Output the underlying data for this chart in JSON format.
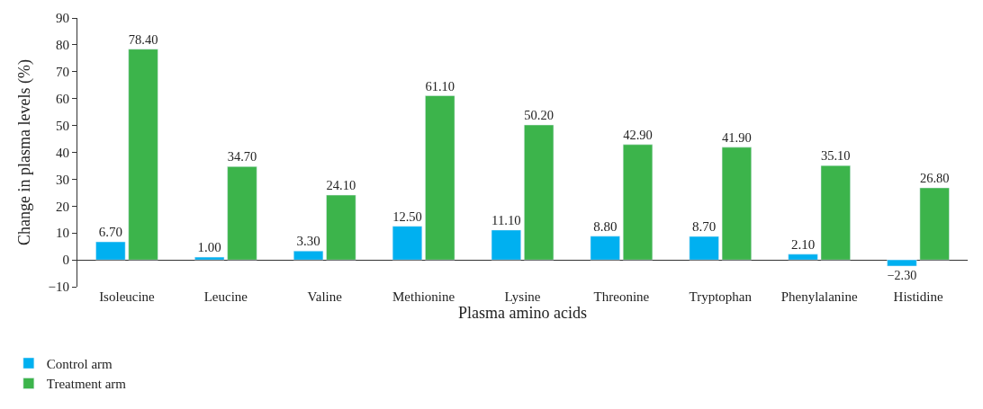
{
  "chart_data": {
    "type": "bar",
    "xlabel": "Plasma amino acids",
    "ylabel": "Change in plasma levels (%)",
    "categories": [
      "Isoleucine",
      "Leucine",
      "Valine",
      "Methionine",
      "Lysine",
      "Threonine",
      "Tryptophan",
      "Phenylalanine",
      "Histidine"
    ],
    "series": [
      {
        "name": "Control arm",
        "color": "#00b0f0",
        "values": [
          6.7,
          1.0,
          3.3,
          12.5,
          11.1,
          8.8,
          8.7,
          2.1,
          -2.3
        ],
        "value_labels": [
          "6.70",
          "1.00",
          "3.30",
          "12.50",
          "11.10",
          "8.80",
          "8.70",
          "2.10",
          "−2.30"
        ]
      },
      {
        "name": "Treatment arm",
        "color": "#3cb44b",
        "values": [
          78.4,
          34.7,
          24.1,
          61.1,
          50.2,
          42.9,
          41.9,
          35.1,
          26.8
        ],
        "value_labels": [
          "78.40",
          "34.70",
          "24.10",
          "61.10",
          "50.20",
          "42.90",
          "41.90",
          "35.10",
          "26.80"
        ]
      }
    ],
    "ylim": [
      -10,
      90
    ],
    "yticks": [
      {
        "value": -10,
        "label": "−10"
      },
      0,
      10,
      20,
      30,
      40,
      50,
      60,
      70,
      80,
      90
    ],
    "legend": "bottom left"
  }
}
